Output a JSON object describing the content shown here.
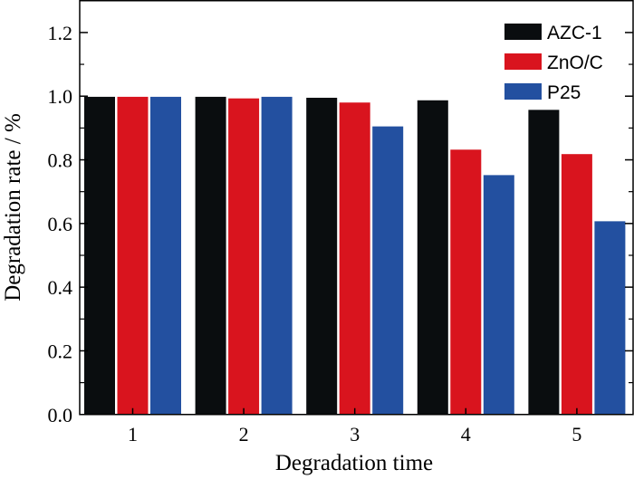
{
  "chart_data": {
    "type": "bar",
    "title": "",
    "xlabel": "Degradation time",
    "ylabel": "Degradation rate / %",
    "categories": [
      "1",
      "2",
      "3",
      "4",
      "5"
    ],
    "ylim": [
      0,
      1.3
    ],
    "yticks": [
      "0.0",
      "0.2",
      "0.4",
      "0.6",
      "0.8",
      "1.0",
      "1.2"
    ],
    "ytick_values": [
      0.0,
      0.2,
      0.4,
      0.6,
      0.8,
      1.0,
      1.2
    ],
    "legend_position": "top-right",
    "grid": false,
    "series": [
      {
        "name": "AZC-1",
        "color": "#0a0d0f",
        "values": [
          0.998,
          0.998,
          0.995,
          0.987,
          0.957
        ]
      },
      {
        "name": "ZnO/C",
        "color": "#d9141e",
        "values": [
          0.998,
          0.993,
          0.98,
          0.832,
          0.818
        ]
      },
      {
        "name": "P25",
        "color": "#2350a0",
        "values": [
          0.998,
          0.998,
          0.905,
          0.752,
          0.607
        ]
      }
    ]
  }
}
